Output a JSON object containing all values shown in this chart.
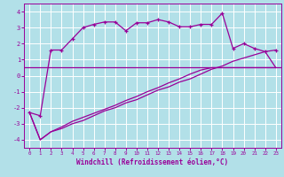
{
  "xlabel": "Windchill (Refroidissement éolien,°C)",
  "bg_color": "#b2e0e8",
  "grid_color": "#ffffff",
  "line_color": "#990099",
  "x_data": [
    0,
    1,
    2,
    3,
    4,
    5,
    6,
    7,
    8,
    9,
    10,
    11,
    12,
    13,
    14,
    15,
    16,
    17,
    18,
    19,
    20,
    21,
    22,
    23
  ],
  "temp_data": [
    -2.3,
    -2.5,
    1.6,
    1.6,
    2.3,
    3.0,
    3.2,
    3.35,
    3.35,
    2.8,
    3.3,
    3.3,
    3.5,
    3.35,
    3.05,
    3.05,
    3.2,
    3.2,
    3.9,
    1.7,
    2.0,
    1.7,
    1.5,
    1.6
  ],
  "wc_line1": [
    -2.3,
    -4.0,
    -3.5,
    -3.3,
    -3.0,
    -2.8,
    -2.5,
    -2.2,
    -2.0,
    -1.7,
    -1.5,
    -1.2,
    -0.9,
    -0.7,
    -0.4,
    -0.2,
    0.1,
    0.4,
    0.6,
    0.9,
    1.1,
    1.3,
    1.5,
    0.5
  ],
  "wc_line2": [
    -2.3,
    -4.0,
    -3.5,
    -3.2,
    -2.85,
    -2.6,
    -2.35,
    -2.1,
    -1.85,
    -1.55,
    -1.3,
    -1.0,
    -0.75,
    -0.45,
    -0.2,
    0.1,
    0.35,
    0.5,
    0.5,
    0.5,
    0.5,
    0.5,
    0.5,
    0.5
  ],
  "hline_y": 0.5,
  "ylim": [
    -4.5,
    4.5
  ],
  "xlim": [
    -0.5,
    23.5
  ],
  "yticks": [
    -4,
    -3,
    -2,
    -1,
    0,
    1,
    2,
    3,
    4
  ],
  "xticks": [
    0,
    1,
    2,
    3,
    4,
    5,
    6,
    7,
    8,
    9,
    10,
    11,
    12,
    13,
    14,
    15,
    16,
    17,
    18,
    19,
    20,
    21,
    22,
    23
  ]
}
